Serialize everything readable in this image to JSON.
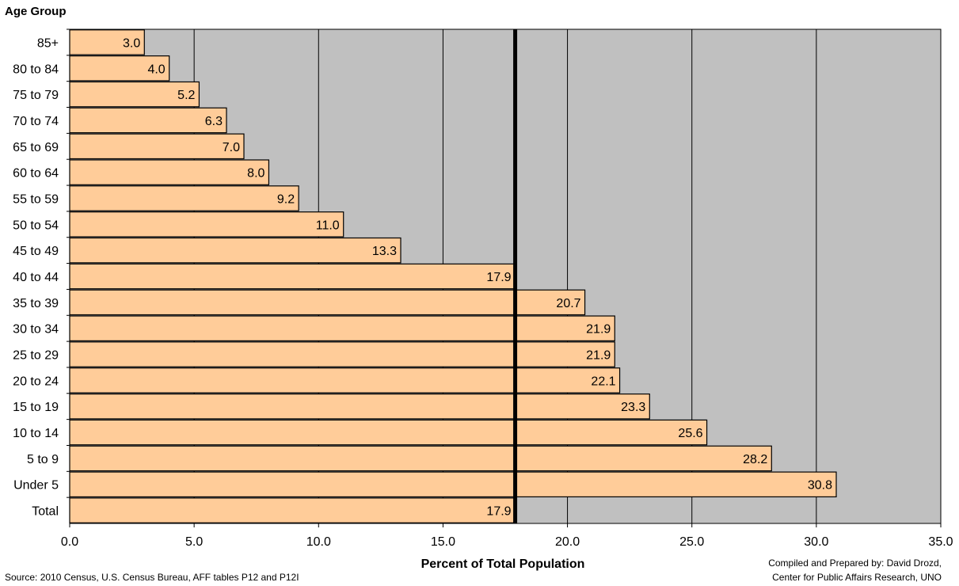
{
  "chart_data": {
    "type": "bar",
    "orientation": "horizontal",
    "ylabel": "Age Group",
    "xlabel": "Percent of Total Population",
    "categories": [
      "85+",
      "80 to 84",
      "75 to 79",
      "70 to 74",
      "65 to 69",
      "60 to 64",
      "55 to 59",
      "50 to 54",
      "45 to 49",
      "40 to 44",
      "35 to 39",
      "30 to 34",
      "25 to 29",
      "20 to 24",
      "15 to 19",
      "10 to 14",
      "5 to 9",
      "Under 5",
      "Total"
    ],
    "values": [
      3.0,
      4.0,
      5.2,
      6.3,
      7.0,
      8.0,
      9.2,
      11.0,
      13.3,
      17.9,
      20.7,
      21.9,
      21.9,
      22.1,
      23.3,
      25.6,
      28.2,
      30.8,
      17.9
    ],
    "value_labels": [
      "3.0",
      "4.0",
      "5.2",
      "6.3",
      "7.0",
      "8.0",
      "9.2",
      "11.0",
      "13.3",
      "17.9",
      "20.7",
      "21.9",
      "21.9",
      "22.1",
      "23.3",
      "25.6",
      "28.2",
      "30.8",
      "17.9"
    ],
    "xlim": [
      0,
      35
    ],
    "xticks": [
      0,
      5,
      10,
      15,
      20,
      25,
      30,
      35
    ],
    "xtick_labels": [
      "0.0",
      "5.0",
      "10.0",
      "15.0",
      "20.0",
      "25.0",
      "30.0",
      "35.0"
    ],
    "reference_line": 17.9,
    "grid": true,
    "legend": "none",
    "colors": {
      "bar": "#FFCC99",
      "plot_background": "#C0C0C0",
      "reference_line": "#000000"
    }
  },
  "source": "Source: 2010 Census, U.S. Census Bureau, AFF tables P12 and P12I",
  "credit_line1": "Compiled and Prepared by: David Drozd,",
  "credit_line2": "Center for Public Affairs Research, UNO"
}
